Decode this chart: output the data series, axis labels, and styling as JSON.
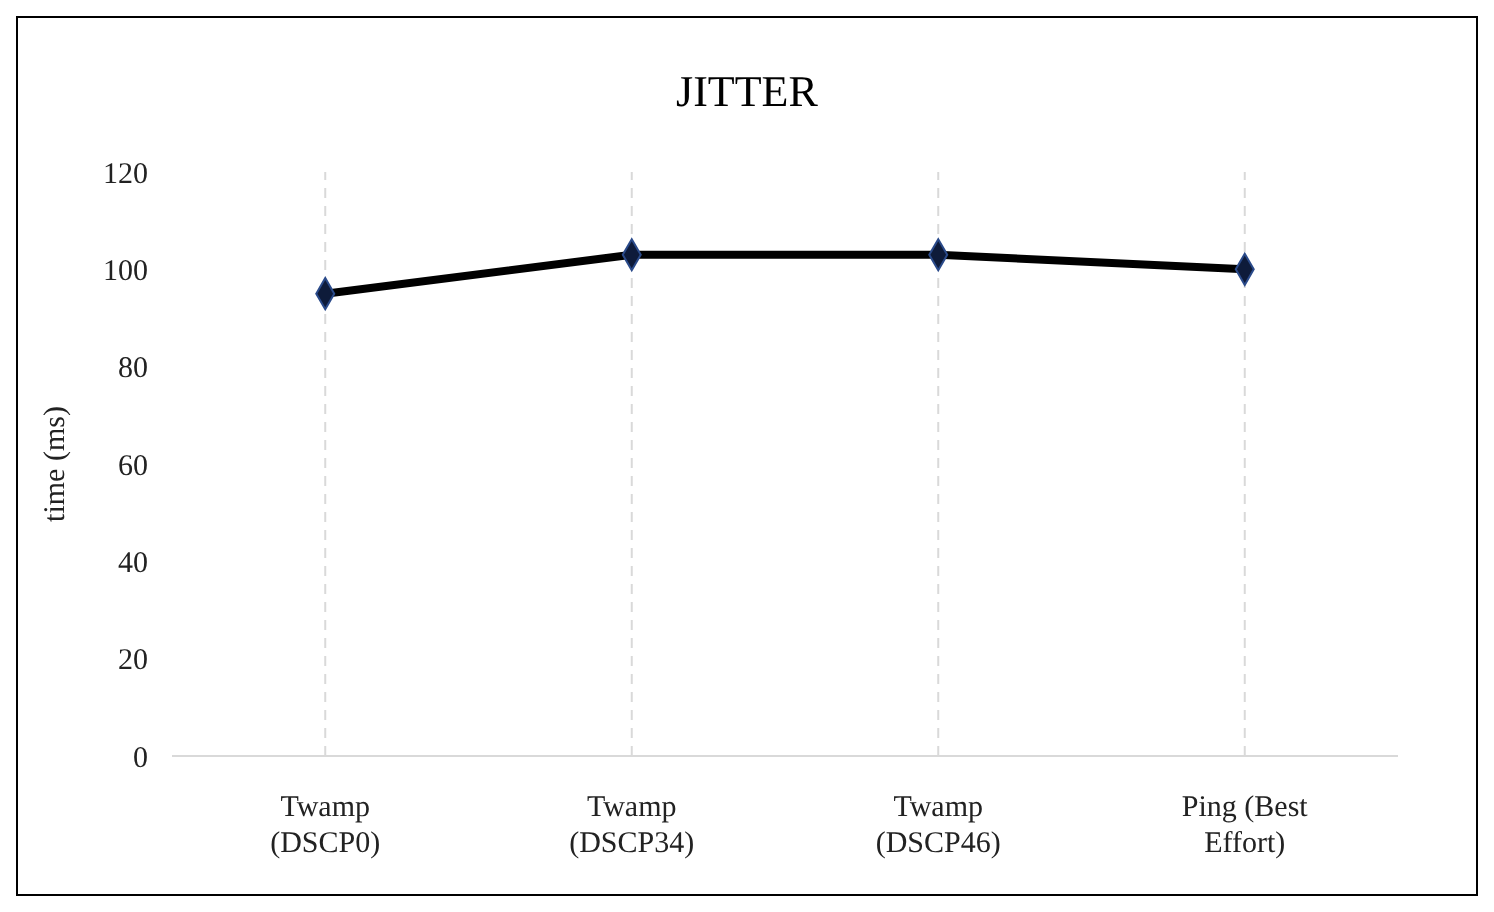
{
  "chart_data": {
    "type": "line",
    "title": "JITTER",
    "ylabel": "time (ms)",
    "categories": [
      "Twamp (DSCP0)",
      "Twamp (DSCP34)",
      "Twamp (DSCP46)",
      "Ping (Best Effort)"
    ],
    "series": [
      {
        "color": "#000000",
        "values": [
          95,
          103,
          103,
          100
        ]
      }
    ],
    "ylim": [
      0,
      120
    ],
    "yticks": [
      0,
      20,
      40,
      60,
      80,
      100,
      120
    ],
    "grid": "x",
    "marker": "diamond",
    "line_style": "solid"
  }
}
